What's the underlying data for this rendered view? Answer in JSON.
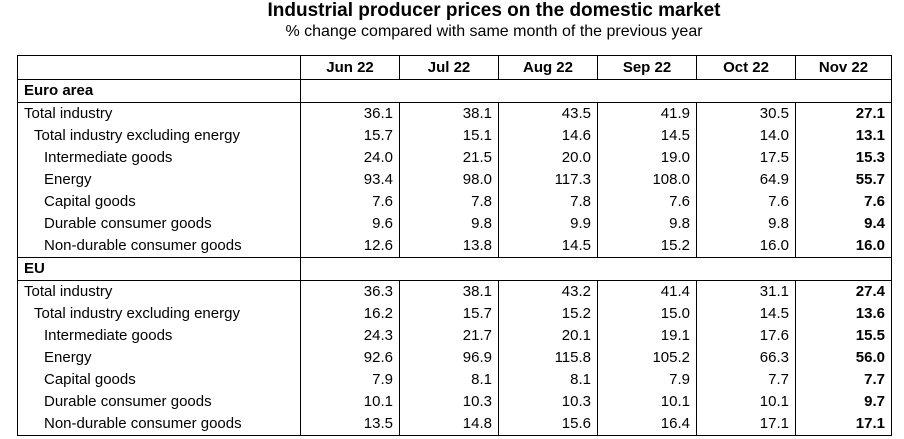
{
  "title": "Industrial producer prices on the domestic market",
  "subtitle": "% change compared with same month of the previous year",
  "columns": [
    "Jun 22",
    "Jul 22",
    "Aug 22",
    "Sep 22",
    "Oct 22",
    "Nov 22"
  ],
  "sections": [
    {
      "name": "Euro area",
      "rows": [
        {
          "label": "Total industry",
          "level": 0,
          "values": [
            "36.1",
            "38.1",
            "43.5",
            "41.9",
            "30.5",
            "27.1"
          ]
        },
        {
          "label": "Total industry excluding energy",
          "level": 1,
          "values": [
            "15.7",
            "15.1",
            "14.6",
            "14.5",
            "14.0",
            "13.1"
          ]
        },
        {
          "label": "Intermediate goods",
          "level": 2,
          "values": [
            "24.0",
            "21.5",
            "20.0",
            "19.0",
            "17.5",
            "15.3"
          ]
        },
        {
          "label": "Energy",
          "level": 2,
          "values": [
            "93.4",
            "98.0",
            "117.3",
            "108.0",
            "64.9",
            "55.7"
          ]
        },
        {
          "label": "Capital goods",
          "level": 2,
          "values": [
            "7.6",
            "7.8",
            "7.8",
            "7.6",
            "7.6",
            "7.6"
          ]
        },
        {
          "label": "Durable consumer goods",
          "level": 2,
          "values": [
            "9.6",
            "9.8",
            "9.9",
            "9.8",
            "9.8",
            "9.4"
          ]
        },
        {
          "label": "Non-durable consumer goods",
          "level": 2,
          "values": [
            "12.6",
            "13.8",
            "14.5",
            "15.2",
            "16.0",
            "16.0"
          ]
        }
      ]
    },
    {
      "name": "EU",
      "rows": [
        {
          "label": "Total industry",
          "level": 0,
          "values": [
            "36.3",
            "38.1",
            "43.2",
            "41.4",
            "31.1",
            "27.4"
          ]
        },
        {
          "label": "Total industry excluding energy",
          "level": 1,
          "values": [
            "16.2",
            "15.7",
            "15.2",
            "15.0",
            "14.5",
            "13.6"
          ]
        },
        {
          "label": "Intermediate goods",
          "level": 2,
          "values": [
            "24.3",
            "21.7",
            "20.1",
            "19.1",
            "17.6",
            "15.5"
          ]
        },
        {
          "label": "Energy",
          "level": 2,
          "values": [
            "92.6",
            "96.9",
            "115.8",
            "105.2",
            "66.3",
            "56.0"
          ]
        },
        {
          "label": "Capital goods",
          "level": 2,
          "values": [
            "7.9",
            "8.1",
            "8.1",
            "7.9",
            "7.7",
            "7.7"
          ]
        },
        {
          "label": "Durable consumer goods",
          "level": 2,
          "values": [
            "10.1",
            "10.3",
            "10.3",
            "10.1",
            "10.1",
            "9.7"
          ]
        },
        {
          "label": "Non-durable consumer goods",
          "level": 2,
          "values": [
            "13.5",
            "14.8",
            "15.6",
            "16.4",
            "17.1",
            "17.1"
          ]
        }
      ]
    }
  ]
}
